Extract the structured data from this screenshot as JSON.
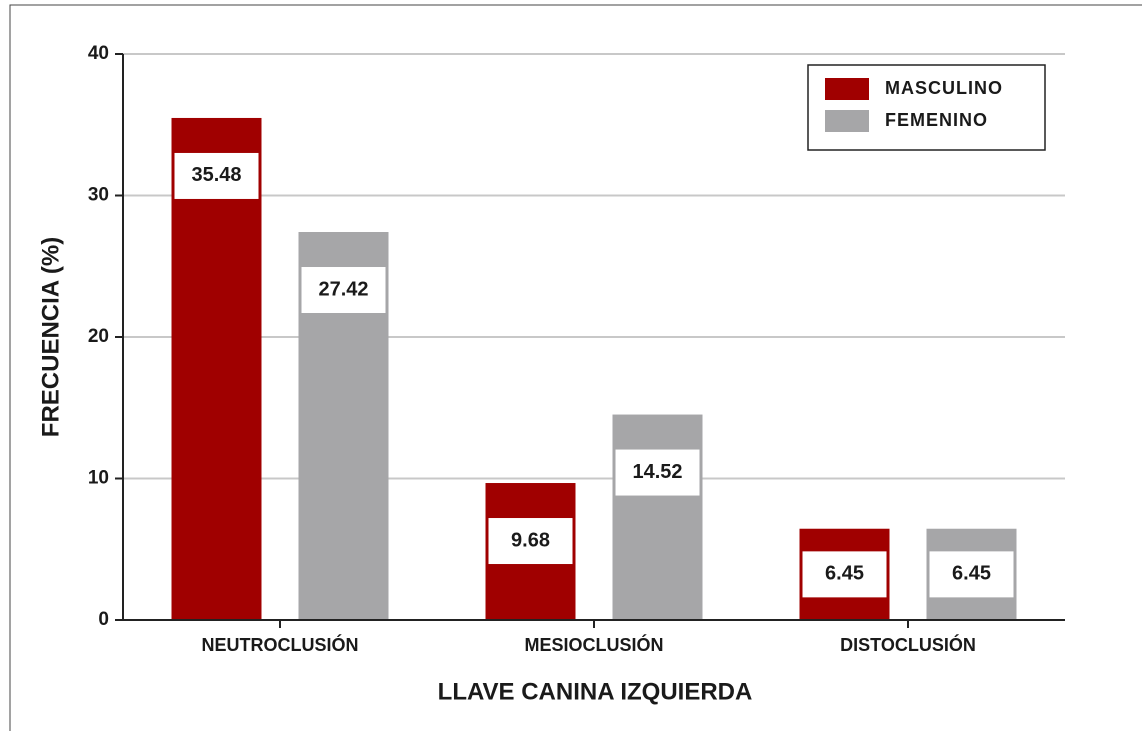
{
  "chart_data": {
    "type": "bar",
    "xlabel": "LLAVE CANINA IZQUIERDA",
    "ylabel": "FRECUENCIA (%)",
    "categories": [
      "NEUTROCLUSIÓN",
      "MESIOCLUSIÓN",
      "DISTOCLUSIÓN"
    ],
    "series": [
      {
        "name": "MASCULINO",
        "color": "#a00000",
        "values": [
          35.48,
          9.68,
          6.45
        ]
      },
      {
        "name": "FEMENINO",
        "color": "#a6a6a8",
        "values": [
          27.42,
          14.52,
          6.45
        ]
      }
    ],
    "ylim": [
      0,
      40
    ],
    "yticks": [
      0,
      10,
      20,
      30,
      40
    ],
    "grid": true,
    "legend": "upper right"
  }
}
